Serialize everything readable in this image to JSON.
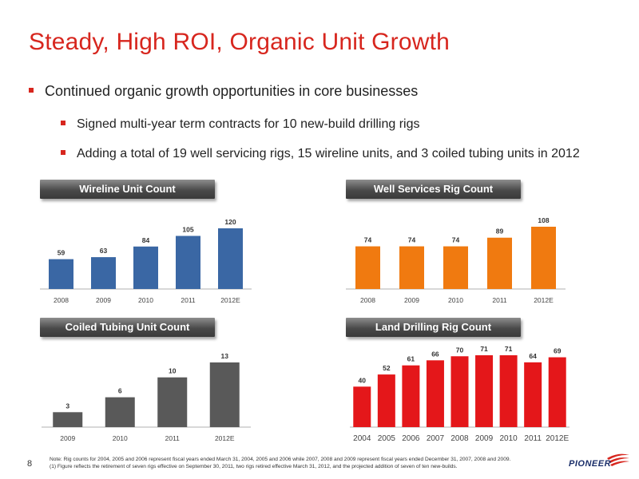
{
  "page": {
    "title": "Steady, High ROI, Organic Unit Growth",
    "bullets": [
      "Continued organic growth opportunities in core businesses",
      "Signed multi-year term contracts for 10 new-build drilling rigs",
      "Adding a total of 19 well servicing rigs, 15 wireline units, and 3 coiled tubing units in 2012"
    ],
    "note_line1": "Note: Rig counts for 2004, 2005 and 2006 represent fiscal years ended March 31, 2004, 2005 and 2006 while 2007, 2008 and 2009 represent fiscal years ended December 31, 2007, 2008 and 2009.",
    "note_line2": "(1)  Figure reflects the retirement of seven rigs effective on September 30, 2011, two rigs retired effective March 31, 2012, and the projected addition of seven of ten new-builds.",
    "page_number": "8",
    "logo_text": "PIONEER"
  },
  "colors": {
    "title": "#d7261e",
    "bullet": "#d7261e",
    "wireline": "#3a67a4",
    "well_services": "#f07a10",
    "coiled_tubing": "#595959",
    "land_drilling": "#e4171a"
  },
  "chart_data": [
    {
      "type": "bar",
      "title": "Wireline Unit Count",
      "categories": [
        "2008",
        "2009",
        "2010",
        "2011",
        "2012E"
      ],
      "values": [
        59,
        63,
        84,
        105,
        120
      ],
      "ylim": [
        0,
        120
      ]
    },
    {
      "type": "bar",
      "title": "Well Services Rig Count",
      "categories": [
        "2008",
        "2009",
        "2010",
        "2011",
        "2012E"
      ],
      "values": [
        74,
        74,
        74,
        89,
        108
      ],
      "ylim": [
        0,
        108
      ]
    },
    {
      "type": "bar",
      "title": "Coiled Tubing Unit Count",
      "categories": [
        "2009",
        "2010",
        "2011",
        "2012E"
      ],
      "values": [
        3,
        6,
        10,
        13
      ],
      "ylim": [
        0,
        13
      ]
    },
    {
      "type": "bar",
      "title": "Land Drilling Rig Count",
      "categories": [
        "2004",
        "2005",
        "2006",
        "2007",
        "2008",
        "2009",
        "2010",
        "2011",
        "2012E"
      ],
      "values": [
        40,
        52,
        61,
        66,
        70,
        71,
        71,
        64,
        69
      ],
      "ylim": [
        0,
        71
      ]
    }
  ]
}
